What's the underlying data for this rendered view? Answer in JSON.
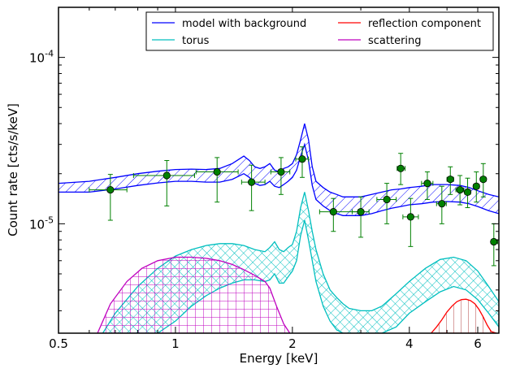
{
  "chart_data": {
    "type": "line",
    "xlabel": "Energy [keV]",
    "ylabel": "Count rate [cts/s/keV]",
    "x_scale": "log",
    "y_scale": "log",
    "xlim": [
      0.5,
      6.8
    ],
    "ylim": [
      2.2e-06,
      0.0002
    ],
    "x_ticks": [
      {
        "value": 0.5,
        "label": "0.5"
      },
      {
        "value": 1,
        "label": "1"
      },
      {
        "value": 2,
        "label": "2"
      },
      {
        "value": 4,
        "label": "4"
      },
      {
        "value": 6,
        "label": "6"
      }
    ],
    "y_ticks": [
      {
        "value": 1e-05,
        "base": "10",
        "exp": "-5"
      },
      {
        "value": 0.0001,
        "base": "10",
        "exp": "-4"
      }
    ],
    "legend": {
      "placement": "top-right",
      "columns": 2,
      "entries": [
        {
          "label": "model with background",
          "color": "#0000ff"
        },
        {
          "label": "reflection component",
          "color": "#ff0000"
        },
        {
          "label": "torus",
          "color": "#00bfbf"
        },
        {
          "label": "scattering",
          "color": "#bf00bf"
        }
      ]
    },
    "colors": {
      "model": "#0000ff",
      "torus": "#00bfbf",
      "reflection": "#ff0000",
      "scattering": "#bf00bf",
      "data": "#008000"
    },
    "data_points": [
      {
        "x": 0.68,
        "y": 1.6e-05,
        "xlo": 0.6,
        "xhi": 0.75,
        "ylo": 1.05e-05,
        "yhi": 1.98e-05
      },
      {
        "x": 0.95,
        "y": 1.95e-05,
        "xlo": 0.78,
        "xhi": 1.12,
        "ylo": 1.28e-05,
        "yhi": 2.4e-05
      },
      {
        "x": 1.28,
        "y": 2.05e-05,
        "xlo": 1.13,
        "xhi": 1.45,
        "ylo": 1.35e-05,
        "yhi": 2.5e-05
      },
      {
        "x": 1.57,
        "y": 1.78e-05,
        "xlo": 1.48,
        "xhi": 1.7,
        "ylo": 1.2e-05,
        "yhi": 2.25e-05
      },
      {
        "x": 1.87,
        "y": 2.05e-05,
        "xlo": 1.76,
        "xhi": 1.97,
        "ylo": 1.5e-05,
        "yhi": 2.5e-05
      },
      {
        "x": 2.12,
        "y": 2.45e-05,
        "xlo": 2.04,
        "xhi": 2.2,
        "ylo": 1.9e-05,
        "yhi": 2.9e-05
      },
      {
        "x": 2.55,
        "y": 1.18e-05,
        "xlo": 2.35,
        "xhi": 2.95,
        "ylo": 9e-06,
        "yhi": 1.42e-05
      },
      {
        "x": 3.0,
        "y": 1.18e-05,
        "xlo": 2.85,
        "xhi": 3.15,
        "ylo": 8.3e-06,
        "yhi": 1.45e-05
      },
      {
        "x": 3.5,
        "y": 1.4e-05,
        "xlo": 3.3,
        "xhi": 3.7,
        "ylo": 1e-05,
        "yhi": 1.75e-05
      },
      {
        "x": 3.8,
        "y": 2.15e-05,
        "xlo": 3.72,
        "xhi": 3.9,
        "ylo": 1.72e-05,
        "yhi": 2.65e-05
      },
      {
        "x": 4.03,
        "y": 1.1e-05,
        "xlo": 3.85,
        "xhi": 4.22,
        "ylo": 7.3e-06,
        "yhi": 1.42e-05
      },
      {
        "x": 4.45,
        "y": 1.75e-05,
        "xlo": 4.3,
        "xhi": 4.6,
        "ylo": 1.4e-05,
        "yhi": 2.05e-05
      },
      {
        "x": 4.85,
        "y": 1.32e-05,
        "xlo": 4.7,
        "xhi": 4.98,
        "ylo": 1e-05,
        "yhi": 1.68e-05
      },
      {
        "x": 5.1,
        "y": 1.85e-05,
        "xlo": 5.0,
        "xhi": 5.2,
        "ylo": 1.5e-05,
        "yhi": 2.2e-05
      },
      {
        "x": 5.4,
        "y": 1.6e-05,
        "xlo": 5.27,
        "xhi": 5.52,
        "ylo": 1.3e-05,
        "yhi": 1.95e-05
      },
      {
        "x": 5.65,
        "y": 1.55e-05,
        "xlo": 5.55,
        "xhi": 5.75,
        "ylo": 1.25e-05,
        "yhi": 1.88e-05
      },
      {
        "x": 5.95,
        "y": 1.68e-05,
        "xlo": 5.85,
        "xhi": 6.05,
        "ylo": 1.35e-05,
        "yhi": 2.05e-05
      },
      {
        "x": 6.2,
        "y": 1.85e-05,
        "xlo": 6.1,
        "xhi": 6.3,
        "ylo": 1.45e-05,
        "yhi": 2.3e-05
      },
      {
        "x": 6.6,
        "y": 7.8e-06,
        "xlo": 6.5,
        "xhi": 6.75,
        "ylo": 5.6e-06,
        "yhi": 1e-05
      }
    ],
    "series": [
      {
        "name": "model with background",
        "kind": "band",
        "x": [
          0.5,
          0.6,
          0.7,
          0.8,
          0.9,
          1.0,
          1.1,
          1.2,
          1.3,
          1.4,
          1.5,
          1.55,
          1.6,
          1.65,
          1.7,
          1.75,
          1.8,
          1.85,
          1.9,
          1.95,
          2.0,
          2.05,
          2.1,
          2.15,
          2.2,
          2.25,
          2.3,
          2.4,
          2.5,
          2.6,
          2.7,
          2.8,
          3.0,
          3.2,
          3.4,
          3.6,
          3.8,
          4.0,
          4.3,
          4.6,
          5.0,
          5.4,
          5.7,
          6.0,
          6.4,
          6.8
        ],
        "upper": [
          1.75e-05,
          1.8e-05,
          1.9e-05,
          2e-05,
          2.07e-05,
          2.12e-05,
          2.13e-05,
          2.12e-05,
          2.15e-05,
          2.3e-05,
          2.55e-05,
          2.4e-05,
          2.2e-05,
          2.15e-05,
          2.2e-05,
          2.3e-05,
          2.1e-05,
          2.05e-05,
          2.15e-05,
          2.2e-05,
          2.3e-05,
          2.6e-05,
          3.2e-05,
          4e-05,
          3.2e-05,
          2.2e-05,
          1.8e-05,
          1.65e-05,
          1.55e-05,
          1.5e-05,
          1.45e-05,
          1.45e-05,
          1.45e-05,
          1.5e-05,
          1.55e-05,
          1.6e-05,
          1.62e-05,
          1.65e-05,
          1.68e-05,
          1.72e-05,
          1.72e-05,
          1.7e-05,
          1.65e-05,
          1.58e-05,
          1.5e-05,
          1.45e-05
        ],
        "lower": [
          1.55e-05,
          1.55e-05,
          1.62e-05,
          1.7e-05,
          1.76e-05,
          1.8e-05,
          1.8e-05,
          1.78e-05,
          1.78e-05,
          1.85e-05,
          2e-05,
          1.9e-05,
          1.75e-05,
          1.7e-05,
          1.72e-05,
          1.8e-05,
          1.68e-05,
          1.65e-05,
          1.72e-05,
          1.8e-05,
          1.9e-05,
          2.1e-05,
          2.55e-05,
          3e-05,
          2.4e-05,
          1.7e-05,
          1.4e-05,
          1.28e-05,
          1.2e-05,
          1.15e-05,
          1.12e-05,
          1.12e-05,
          1.12e-05,
          1.15e-05,
          1.2e-05,
          1.24e-05,
          1.27e-05,
          1.3e-05,
          1.32e-05,
          1.35e-05,
          1.36e-05,
          1.35e-05,
          1.32e-05,
          1.27e-05,
          1.2e-05,
          1.15e-05
        ]
      },
      {
        "name": "torus",
        "kind": "band",
        "x": [
          0.65,
          0.7,
          0.8,
          0.9,
          1.0,
          1.1,
          1.2,
          1.3,
          1.4,
          1.5,
          1.6,
          1.7,
          1.75,
          1.8,
          1.85,
          1.9,
          1.95,
          2.0,
          2.05,
          2.1,
          2.15,
          2.2,
          2.25,
          2.3,
          2.4,
          2.5,
          2.6,
          2.7,
          2.8,
          3.0,
          3.2,
          3.4,
          3.7,
          4.0,
          4.4,
          4.8,
          5.2,
          5.6,
          6.0,
          6.4,
          6.8
        ],
        "upper": [
          2.2e-06,
          2.9e-06,
          4.2e-06,
          5.4e-06,
          6.4e-06,
          7e-06,
          7.4e-06,
          7.6e-06,
          7.6e-06,
          7.4e-06,
          7e-06,
          6.8e-06,
          7.2e-06,
          7.8e-06,
          7e-06,
          6.8e-06,
          7.2e-06,
          7.5e-06,
          9e-06,
          1.25e-05,
          1.55e-05,
          1.2e-05,
          9e-06,
          7e-06,
          5e-06,
          4e-06,
          3.6e-06,
          3.3e-06,
          3.1e-06,
          3e-06,
          3e-06,
          3.2e-06,
          3.8e-06,
          4.5e-06,
          5.4e-06,
          6.1e-06,
          6.3e-06,
          6e-06,
          5.2e-06,
          4.2e-06,
          3.4e-06
        ],
        "lower": [
          2.2e-06,
          2.2e-06,
          2.2e-06,
          2.2e-06,
          2.6e-06,
          3.2e-06,
          3.7e-06,
          4.1e-06,
          4.4e-06,
          4.6e-06,
          4.6e-06,
          4.5e-06,
          4.6e-06,
          5e-06,
          4.4e-06,
          4.4e-06,
          4.8e-06,
          5.2e-06,
          6e-06,
          8.5e-06,
          1.05e-05,
          8e-06,
          6e-06,
          4.5e-06,
          3.2e-06,
          2.6e-06,
          2.3e-06,
          2.2e-06,
          2.2e-06,
          2.2e-06,
          2.2e-06,
          2.2e-06,
          2.4e-06,
          2.9e-06,
          3.4e-06,
          3.9e-06,
          4.2e-06,
          4e-06,
          3.5e-06,
          2.9e-06,
          2.4e-06
        ]
      },
      {
        "name": "scattering",
        "kind": "band",
        "x": [
          0.63,
          0.68,
          0.75,
          0.82,
          0.9,
          1.0,
          1.1,
          1.2,
          1.3,
          1.4,
          1.5,
          1.6,
          1.7,
          1.75,
          1.82,
          1.9,
          1.97
        ],
        "upper": [
          2.2e-06,
          3.3e-06,
          4.5e-06,
          5.4e-06,
          6e-06,
          6.3e-06,
          6.3e-06,
          6.2e-06,
          6e-06,
          5.7e-06,
          5.3e-06,
          4.9e-06,
          4.5e-06,
          4.1e-06,
          3.2e-06,
          2.5e-06,
          2.2e-06
        ],
        "lower": [
          2.2e-06,
          2.2e-06,
          2.2e-06,
          2.2e-06,
          2.2e-06,
          2.2e-06,
          2.2e-06,
          2.2e-06,
          2.2e-06,
          2.2e-06,
          2.2e-06,
          2.2e-06,
          2.2e-06,
          2.2e-06,
          2.2e-06,
          2.2e-06,
          2.2e-06
        ]
      },
      {
        "name": "reflection component",
        "kind": "band",
        "x": [
          4.55,
          4.7,
          4.85,
          5.0,
          5.15,
          5.3,
          5.45,
          5.6,
          5.75,
          5.9,
          6.05,
          6.2,
          6.35,
          6.5,
          6.7
        ],
        "upper": [
          2.2e-06,
          2.4e-06,
          2.65e-06,
          2.95e-06,
          3.2e-06,
          3.4e-06,
          3.5e-06,
          3.52e-06,
          3.45e-06,
          3.3e-06,
          3.05e-06,
          2.75e-06,
          2.45e-06,
          2.25e-06,
          2.2e-06
        ],
        "lower": [
          2.2e-06,
          2.2e-06,
          2.2e-06,
          2.2e-06,
          2.2e-06,
          2.2e-06,
          2.2e-06,
          2.2e-06,
          2.2e-06,
          2.2e-06,
          2.2e-06,
          2.2e-06,
          2.2e-06,
          2.2e-06,
          2.2e-06
        ]
      }
    ]
  }
}
